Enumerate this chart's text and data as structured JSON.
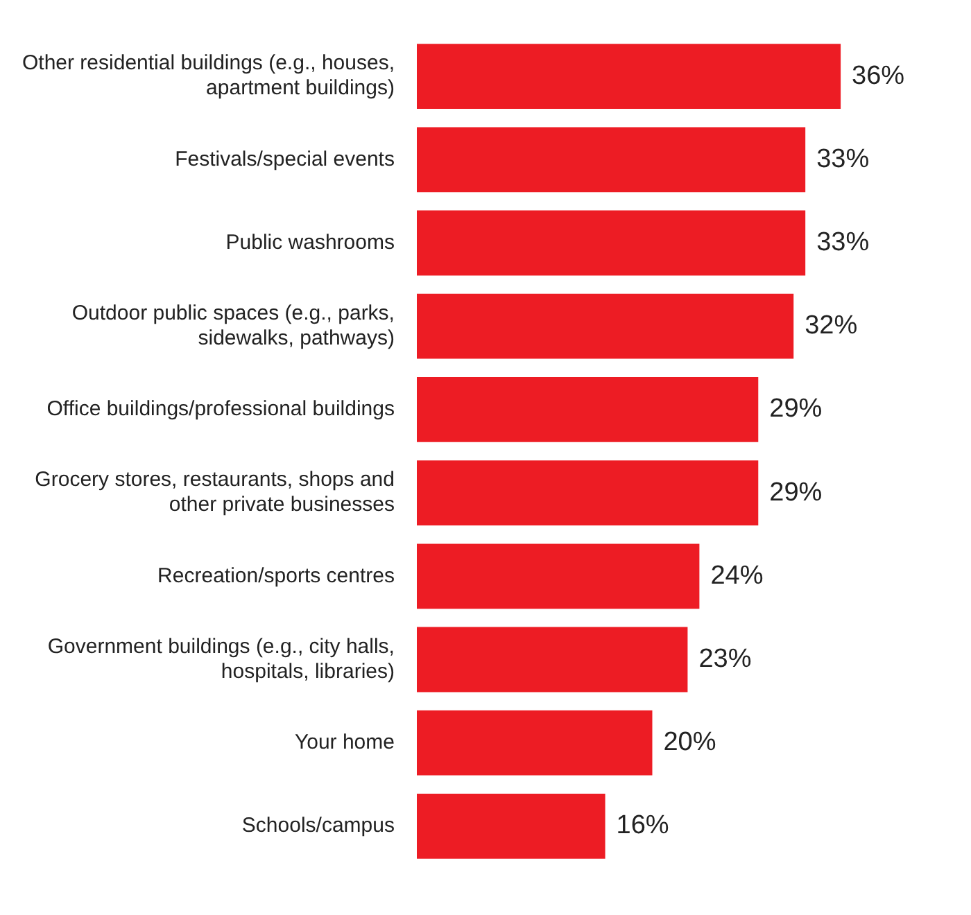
{
  "chart_data": {
    "type": "bar",
    "orientation": "horizontal",
    "categories": [
      "Other residential buildings (e.g., houses, apartment buildings)",
      "Festivals/special events",
      "Public washrooms",
      "Outdoor public spaces (e.g., parks, sidewalks, pathways)",
      "Office buildings/professional buildings",
      "Grocery stores, restaurants, shops and other private businesses",
      "Recreation/sports centres",
      "Government buildings (e.g., city halls, hospitals, libraries)",
      "Your home",
      "Schools/campus"
    ],
    "values": [
      36,
      33,
      33,
      32,
      29,
      29,
      24,
      23,
      20,
      16
    ],
    "value_labels": [
      "36%",
      "33%",
      "33%",
      "32%",
      "29%",
      "29%",
      "24%",
      "23%",
      "20%",
      "16%"
    ],
    "color": "#ed1c24",
    "legend": false,
    "grid": false
  }
}
